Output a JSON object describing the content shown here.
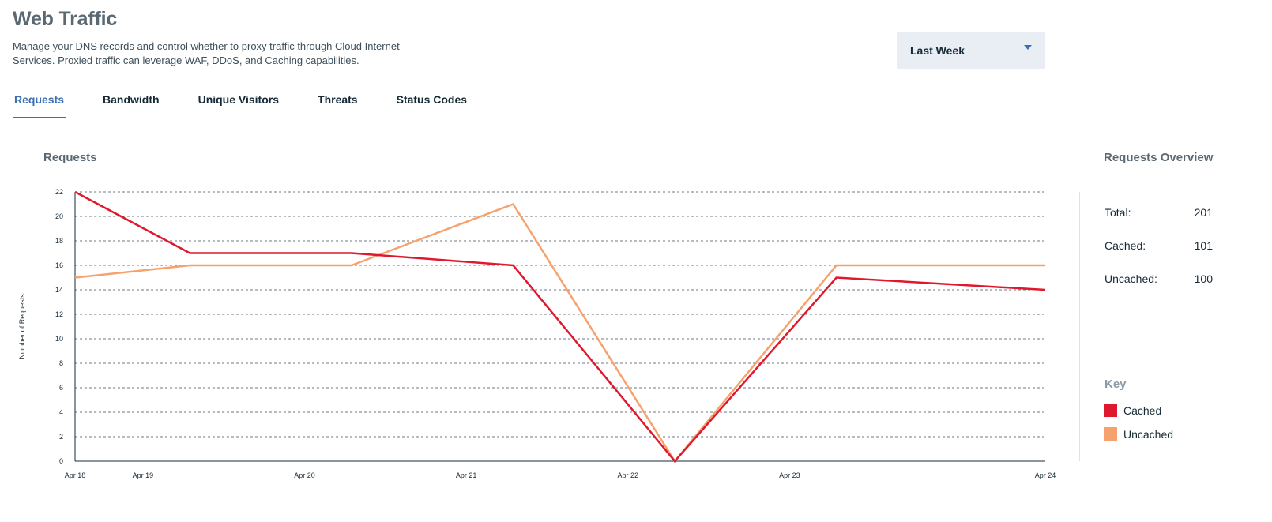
{
  "header": {
    "title": "Web Traffic",
    "description": "Manage your DNS records and control whether to proxy traffic through Cloud Internet Services. Proxied traffic can leverage WAF, DDoS, and Caching capabilities."
  },
  "range_selector": {
    "value": "Last Week",
    "icon": "caret-down-icon"
  },
  "tabs": [
    {
      "label": "Requests",
      "active": true
    },
    {
      "label": "Bandwidth",
      "active": false
    },
    {
      "label": "Unique Visitors",
      "active": false
    },
    {
      "label": "Threats",
      "active": false
    },
    {
      "label": "Status Codes",
      "active": false
    }
  ],
  "chart_title": "Requests",
  "chart_data": {
    "type": "line",
    "ylabel": "Number of Requests",
    "ylim": [
      0,
      22
    ],
    "yticks": [
      0,
      2,
      4,
      6,
      8,
      10,
      12,
      14,
      16,
      18,
      20,
      22
    ],
    "x": [
      "Apr 18",
      "Apr 19",
      "Apr 20",
      "Apr 21",
      "Apr 22",
      "Apr 23",
      "Apr 24"
    ],
    "xtick_labels": [
      "Apr 18",
      "Apr 19",
      "Apr 20",
      "Apr 21",
      "Apr 22",
      "Apr 23",
      "Apr 24"
    ],
    "grid": true,
    "series": [
      {
        "name": "Cached",
        "color": "#e0182d",
        "values": [
          22,
          17,
          17,
          16,
          0,
          15,
          14
        ]
      },
      {
        "name": "Uncached",
        "color": "#f6a26e",
        "values": [
          15,
          16,
          16,
          21,
          0,
          16,
          16
        ]
      }
    ]
  },
  "overview": {
    "title": "Requests Overview",
    "stats": [
      {
        "label": "Total:",
        "value": "201"
      },
      {
        "label": "Cached:",
        "value": "101"
      },
      {
        "label": "Uncached:",
        "value": "100"
      }
    ]
  },
  "key": {
    "title": "Key",
    "items": [
      {
        "label": "Cached",
        "color": "#e0182d"
      },
      {
        "label": "Uncached",
        "color": "#f6a26e"
      }
    ]
  }
}
